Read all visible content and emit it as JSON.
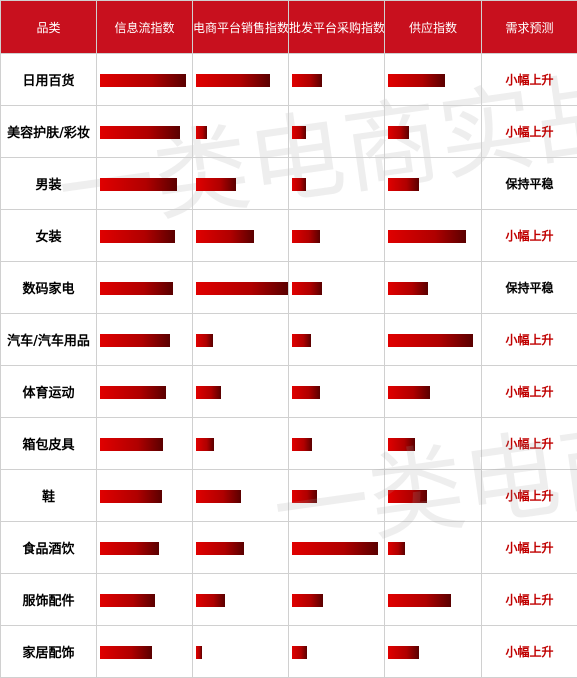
{
  "chart_data": {
    "type": "table",
    "columns": [
      "品类",
      "信息流指数",
      "电商平台销售指数",
      "批发平台采购指数",
      "供应指数",
      "需求预测"
    ],
    "rows": [
      {
        "category": "日用百货",
        "values": [
          0.93,
          0.8,
          0.33,
          0.62
        ],
        "forecast": "小幅上升"
      },
      {
        "category": "美容护肤/彩妆",
        "values": [
          0.87,
          0.12,
          0.15,
          0.23
        ],
        "forecast": "小幅上升"
      },
      {
        "category": "男装",
        "values": [
          0.84,
          0.44,
          0.15,
          0.34
        ],
        "forecast": "保持平稳"
      },
      {
        "category": "女装",
        "values": [
          0.82,
          0.63,
          0.3,
          0.85
        ],
        "forecast": "小幅上升"
      },
      {
        "category": "数码家电",
        "values": [
          0.79,
          1.0,
          0.33,
          0.43
        ],
        "forecast": "保持平稳"
      },
      {
        "category": "汽车/汽车用品",
        "values": [
          0.76,
          0.18,
          0.21,
          0.92
        ],
        "forecast": "小幅上升"
      },
      {
        "category": "体育运动",
        "values": [
          0.72,
          0.27,
          0.3,
          0.46
        ],
        "forecast": "小幅上升"
      },
      {
        "category": "箱包皮具",
        "values": [
          0.69,
          0.2,
          0.22,
          0.29
        ],
        "forecast": "小幅上升"
      },
      {
        "category": "鞋",
        "values": [
          0.67,
          0.49,
          0.27,
          0.42
        ],
        "forecast": "小幅上升"
      },
      {
        "category": "食品酒饮",
        "values": [
          0.64,
          0.52,
          0.93,
          0.18
        ],
        "forecast": "小幅上升"
      },
      {
        "category": "服饰配件",
        "values": [
          0.6,
          0.32,
          0.34,
          0.68
        ],
        "forecast": "小幅上升"
      },
      {
        "category": "家居配饰",
        "values": [
          0.56,
          0.07,
          0.16,
          0.34
        ],
        "forecast": "小幅上升"
      }
    ]
  },
  "colors": {
    "header_bg": "#c8101e",
    "header_text": "#ffffff",
    "bar": "#c00000",
    "forecast_up": "#c00000",
    "forecast_flat": "#000000"
  },
  "watermark": {
    "text1": "一类电商实战",
    "text2": "一类电商实战"
  }
}
